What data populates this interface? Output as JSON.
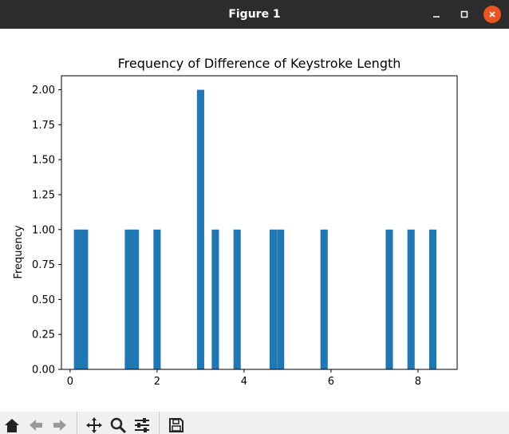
{
  "window": {
    "title": "Figure 1"
  },
  "window_controls": [
    "minimize-icon",
    "maximize-icon",
    "close-icon"
  ],
  "toolbar": {
    "icons": [
      "home-icon",
      "back-arrow-icon",
      "forward-arrow-icon",
      "pan-icon",
      "zoom-icon",
      "configure-subplots-icon",
      "save-icon"
    ]
  },
  "chart_data": {
    "type": "bar",
    "title": "Frequency of Difference of Keystroke Length",
    "xlabel": "",
    "ylabel": "Frequency",
    "xlim": [
      -0.2,
      8.9
    ],
    "ylim": [
      0,
      2.1
    ],
    "x_ticks": [
      0,
      2,
      4,
      6,
      8
    ],
    "y_ticks": [
      0.0,
      0.25,
      0.5,
      0.75,
      1.0,
      1.25,
      1.5,
      1.75,
      2.0
    ],
    "x_tick_labels": [
      "0",
      "2",
      "4",
      "6",
      "8"
    ],
    "y_tick_labels": [
      "0.00",
      "0.25",
      "0.50",
      "0.75",
      "1.00",
      "1.25",
      "1.50",
      "1.75",
      "2.00"
    ],
    "bar_width": 0.167,
    "bars": [
      {
        "x": 0.17,
        "height": 1
      },
      {
        "x": 0.33,
        "height": 1
      },
      {
        "x": 1.34,
        "height": 1
      },
      {
        "x": 1.5,
        "height": 1
      },
      {
        "x": 2.0,
        "height": 1
      },
      {
        "x": 3.0,
        "height": 2
      },
      {
        "x": 3.34,
        "height": 1
      },
      {
        "x": 3.84,
        "height": 1
      },
      {
        "x": 4.67,
        "height": 1
      },
      {
        "x": 4.84,
        "height": 1
      },
      {
        "x": 5.84,
        "height": 1
      },
      {
        "x": 7.34,
        "height": 1
      },
      {
        "x": 7.84,
        "height": 1
      },
      {
        "x": 8.34,
        "height": 1
      }
    ],
    "bar_color": "#1f77b4",
    "grid": false,
    "legend": "none"
  }
}
